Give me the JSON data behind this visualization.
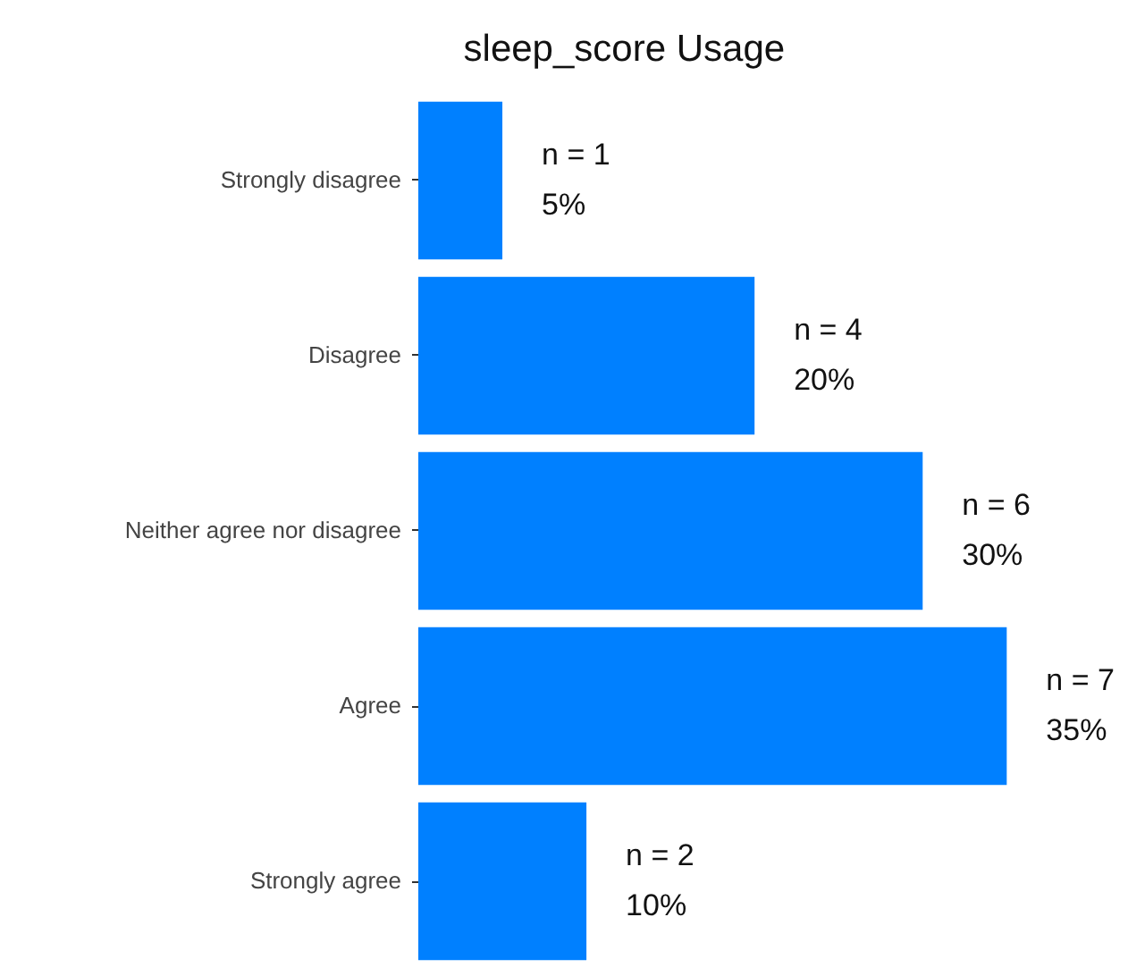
{
  "chart_data": {
    "type": "bar",
    "orientation": "horizontal",
    "title": "sleep_score Usage",
    "categories": [
      "Strongly disagree",
      "Disagree",
      "Neither agree nor disagree",
      "Agree",
      "Strongly agree"
    ],
    "values": [
      1,
      4,
      6,
      7,
      2
    ],
    "value_labels": [
      "n = 1\n5%",
      "n = 4\n20%",
      "n = 6\n30%",
      "n = 7\n35%",
      "n = 2\n10%"
    ],
    "color": "#0080ff",
    "tick_labels": "y"
  }
}
